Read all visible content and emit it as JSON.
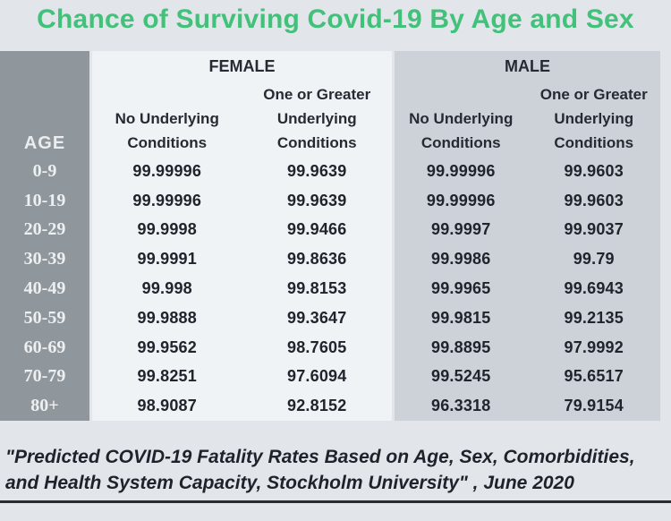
{
  "title": "Chance of Surviving Covid-19 By Age and Sex",
  "table": {
    "age_header": "AGE",
    "groups": [
      {
        "label": "FEMALE",
        "col1": [
          "No Underlying",
          "Conditions"
        ],
        "col2": [
          "One or Greater",
          "Underlying",
          "Conditions"
        ]
      },
      {
        "label": "MALE",
        "col1": [
          "No Underlying",
          "Conditions"
        ],
        "col2": [
          "One or Greater",
          "Underlying",
          "Conditions"
        ]
      }
    ]
  },
  "chart_data": {
    "type": "table",
    "title": "Chance of Surviving Covid-19 By Age and Sex",
    "columns": [
      "AGE",
      "Female - No Underlying Conditions",
      "Female - One or Greater Underlying Conditions",
      "Male - No Underlying Conditions",
      "Male - One or Greater Underlying Conditions"
    ],
    "rows": [
      [
        "0-9",
        "99.99996",
        "99.9639",
        "99.99996",
        "99.9603"
      ],
      [
        "10-19",
        "99.99996",
        "99.9639",
        "99.99996",
        "99.9603"
      ],
      [
        "20-29",
        "99.9998",
        "99.9466",
        "99.9997",
        "99.9037"
      ],
      [
        "30-39",
        "99.9991",
        "99.8636",
        "99.9986",
        "99.79"
      ],
      [
        "40-49",
        "99.998",
        "99.8153",
        "99.9965",
        "99.6943"
      ],
      [
        "50-59",
        "99.9888",
        "99.3647",
        "99.9815",
        "99.2135"
      ],
      [
        "60-69",
        "99.9562",
        "98.7605",
        "99.8895",
        "97.9992"
      ],
      [
        "70-79",
        "99.8251",
        "97.6094",
        "99.5245",
        "95.6517"
      ],
      [
        "80+",
        "98.9087",
        "92.8152",
        "96.3318",
        "79.9154"
      ]
    ]
  },
  "footer": {
    "line1": "\"Predicted COVID-19 Fatality Rates Based on Age, Sex, Comorbidities,",
    "line2": "and Health System Capacity,  Stockholm University\" , June 2020"
  },
  "colors": {
    "title_green": "#42c17a",
    "age_column_bg": "#8f979d",
    "female_panel_bg": "#eff3f6",
    "male_panel_bg": "#ccd2d8",
    "page_bg": "#e2e6ea",
    "text_dark": "#20252d"
  }
}
